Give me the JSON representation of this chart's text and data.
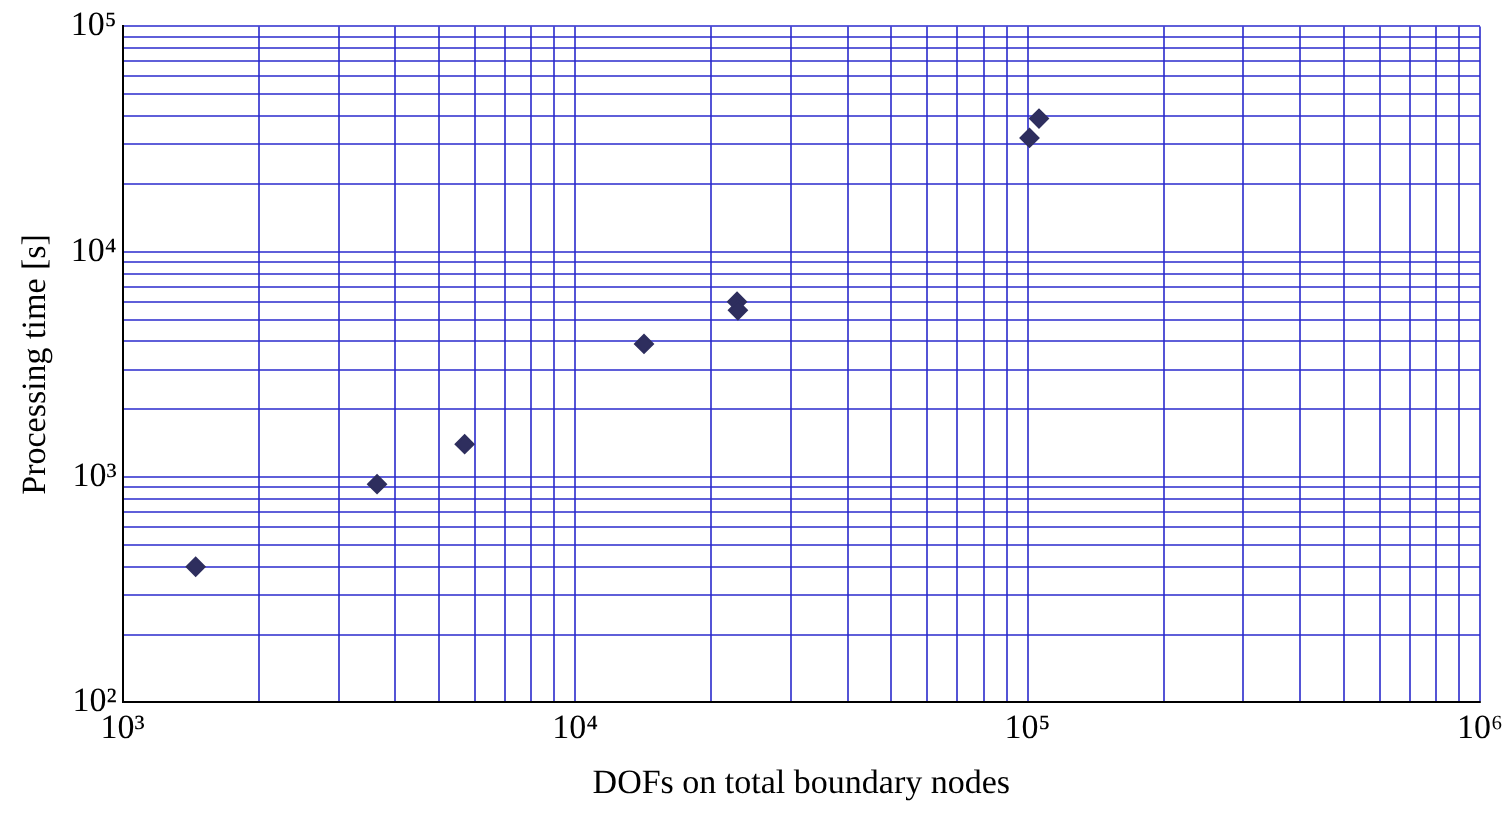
{
  "chart_data": {
    "type": "scatter",
    "xlabel": "DOFs on total boundary nodes",
    "ylabel": "Processing time [s]",
    "log": "xy",
    "grid": true,
    "marker": "diamond",
    "legend": false,
    "xlim": [
      1000,
      1000000
    ],
    "ylim": [
      100,
      100000
    ],
    "xticks": [
      {
        "value": 1000,
        "label": "10³"
      },
      {
        "value": 2000,
        "label": null
      },
      {
        "value": 3000,
        "label": null
      },
      {
        "value": 4000,
        "label": null
      },
      {
        "value": 5000,
        "label": null
      },
      {
        "value": 6000,
        "label": null
      },
      {
        "value": 7000,
        "label": null
      },
      {
        "value": 8000,
        "label": null
      },
      {
        "value": 9000,
        "label": null
      },
      {
        "value": 10000,
        "label": "10⁴"
      },
      {
        "value": 20000,
        "label": null
      },
      {
        "value": 30000,
        "label": null
      },
      {
        "value": 40000,
        "label": null
      },
      {
        "value": 50000,
        "label": null
      },
      {
        "value": 60000,
        "label": null
      },
      {
        "value": 70000,
        "label": null
      },
      {
        "value": 80000,
        "label": null
      },
      {
        "value": 90000,
        "label": null
      },
      {
        "value": 100000,
        "label": "10⁵"
      },
      {
        "value": 200000,
        "label": null
      },
      {
        "value": 300000,
        "label": null
      },
      {
        "value": 400000,
        "label": null
      },
      {
        "value": 500000,
        "label": null
      },
      {
        "value": 600000,
        "label": null
      },
      {
        "value": 700000,
        "label": null
      },
      {
        "value": 800000,
        "label": null
      },
      {
        "value": 900000,
        "label": null
      },
      {
        "value": 1000000,
        "label": "10⁶"
      }
    ],
    "yticks": [
      {
        "value": 100,
        "label": "10²"
      },
      {
        "value": 200,
        "label": null
      },
      {
        "value": 300,
        "label": null
      },
      {
        "value": 400,
        "label": null
      },
      {
        "value": 500,
        "label": null
      },
      {
        "value": 600,
        "label": null
      },
      {
        "value": 700,
        "label": null
      },
      {
        "value": 800,
        "label": null
      },
      {
        "value": 900,
        "label": null
      },
      {
        "value": 1000,
        "label": "10³"
      },
      {
        "value": 2000,
        "label": null
      },
      {
        "value": 3000,
        "label": null
      },
      {
        "value": 4000,
        "label": null
      },
      {
        "value": 5000,
        "label": null
      },
      {
        "value": 6000,
        "label": null
      },
      {
        "value": 7000,
        "label": null
      },
      {
        "value": 8000,
        "label": null
      },
      {
        "value": 9000,
        "label": null
      },
      {
        "value": 10000,
        "label": "10⁴"
      },
      {
        "value": 20000,
        "label": null
      },
      {
        "value": 30000,
        "label": null
      },
      {
        "value": 40000,
        "label": null
      },
      {
        "value": 50000,
        "label": null
      },
      {
        "value": 60000,
        "label": null
      },
      {
        "value": 70000,
        "label": null
      },
      {
        "value": 80000,
        "label": null
      },
      {
        "value": 90000,
        "label": null
      },
      {
        "value": 100000,
        "label": "10⁵"
      }
    ],
    "series": [
      {
        "color": "#2e2e5e",
        "x": [
          1450,
          3650,
          5700,
          14200,
          22800,
          22900,
          101000,
          106000
        ],
        "values": [
          400,
          930,
          1400,
          3900,
          6000,
          5500,
          32000,
          39000
        ]
      }
    ]
  }
}
